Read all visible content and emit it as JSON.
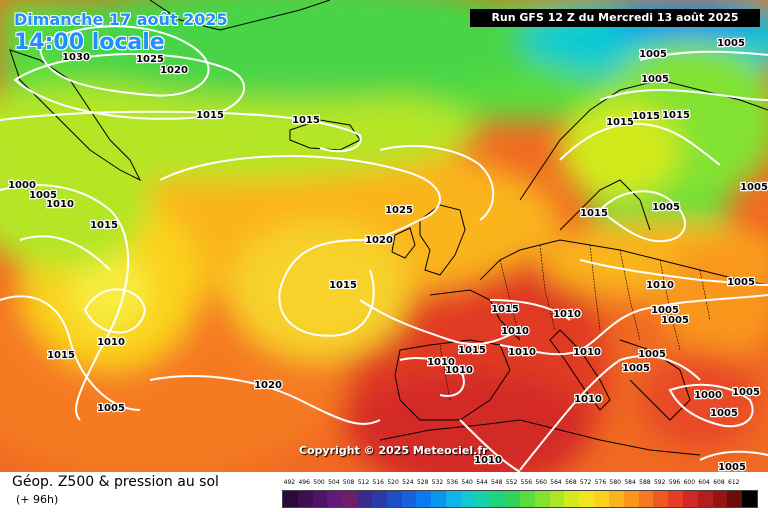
{
  "header": {
    "date": "Dimanche 17 août 2025",
    "time": "14:00 locale",
    "run": "Run GFS 12 Z du Mercredi 13 août 2025"
  },
  "copyright": "Copyright © 2025 Meteociel.fr",
  "legend": {
    "title": "Géop. Z500 & pression au sol",
    "subtitle": "(+ 96h)",
    "scale": [
      {
        "label": "492",
        "color": "#2a0a3a"
      },
      {
        "label": "496",
        "color": "#3c0f55"
      },
      {
        "label": "500",
        "color": "#4f1468"
      },
      {
        "label": "504",
        "color": "#621b7c"
      },
      {
        "label": "508",
        "color": "#6f1f6a"
      },
      {
        "label": "512",
        "color": "#3a2a8c"
      },
      {
        "label": "516",
        "color": "#2a3aa8"
      },
      {
        "label": "520",
        "color": "#1e4ec6"
      },
      {
        "label": "524",
        "color": "#1462de"
      },
      {
        "label": "528",
        "color": "#0a7af0"
      },
      {
        "label": "532",
        "color": "#0a96f0"
      },
      {
        "label": "536",
        "color": "#10b4e8"
      },
      {
        "label": "540",
        "color": "#10cad0"
      },
      {
        "label": "544",
        "color": "#14d2aa"
      },
      {
        "label": "548",
        "color": "#1ed27e"
      },
      {
        "label": "552",
        "color": "#32d25a"
      },
      {
        "label": "556",
        "color": "#5adc3c"
      },
      {
        "label": "560",
        "color": "#82e232"
      },
      {
        "label": "564",
        "color": "#aae628"
      },
      {
        "label": "568",
        "color": "#d2ea1e"
      },
      {
        "label": "572",
        "color": "#f0e61e"
      },
      {
        "label": "576",
        "color": "#fad21e"
      },
      {
        "label": "580",
        "color": "#fab41e"
      },
      {
        "label": "584",
        "color": "#fa961e"
      },
      {
        "label": "588",
        "color": "#f67820"
      },
      {
        "label": "592",
        "color": "#f05a22"
      },
      {
        "label": "596",
        "color": "#e63c24"
      },
      {
        "label": "600",
        "color": "#d22828"
      },
      {
        "label": "604",
        "color": "#b41e1e"
      },
      {
        "label": "608",
        "color": "#961414"
      },
      {
        "label": "612",
        "color": "#6e0a0a"
      },
      {
        "label": "",
        "color": "#000000"
      }
    ]
  },
  "isobars": [
    {
      "label": "1030"
    },
    {
      "label": "1025"
    },
    {
      "label": "1020"
    },
    {
      "label": "1015"
    },
    {
      "label": "1015"
    },
    {
      "label": "1000"
    },
    {
      "label": "1005"
    },
    {
      "label": "1010"
    },
    {
      "label": "1015"
    },
    {
      "label": "1010"
    },
    {
      "label": "1015"
    },
    {
      "label": "1005"
    },
    {
      "label": "1020"
    },
    {
      "label": "1015"
    },
    {
      "label": "1020"
    },
    {
      "label": "1025"
    },
    {
      "label": "1015"
    },
    {
      "label": "1010"
    },
    {
      "label": "1015"
    },
    {
      "label": "1010"
    },
    {
      "label": "1010"
    },
    {
      "label": "1010"
    },
    {
      "label": "1010"
    },
    {
      "label": "1010"
    },
    {
      "label": "1010"
    },
    {
      "label": "1010"
    },
    {
      "label": "1005"
    },
    {
      "label": "1005"
    },
    {
      "label": "1005"
    },
    {
      "label": "1005"
    },
    {
      "label": "1015"
    },
    {
      "label": "1005"
    },
    {
      "label": "1010"
    },
    {
      "label": "1005"
    },
    {
      "label": "1005"
    },
    {
      "label": "1005"
    },
    {
      "label": "1005"
    },
    {
      "label": "1000"
    },
    {
      "label": "1005"
    },
    {
      "label": "1005"
    },
    {
      "label": "1015"
    },
    {
      "label": "1015"
    },
    {
      "label": "1015"
    },
    {
      "label": "1005"
    },
    {
      "label": "1005"
    }
  ]
}
